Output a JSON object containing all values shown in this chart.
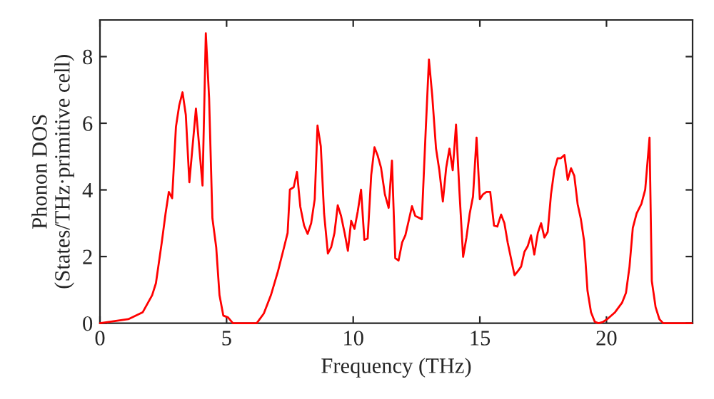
{
  "chart_data": {
    "type": "line",
    "xlabel": "Frequency (THz)",
    "ylabel": "Phonon DOS\n(States/THz·primitive cell)",
    "xlim": [
      0,
      23.4
    ],
    "ylim": [
      0,
      9.1
    ],
    "xticks": [
      0,
      5,
      10,
      15,
      20
    ],
    "yticks": [
      0,
      2,
      4,
      6,
      8
    ],
    "grid": false,
    "legend": false,
    "marker": "none",
    "line_style": "solid",
    "series": [
      {
        "color": "#ff0000",
        "x": [
          0,
          1.12,
          1.69,
          2.06,
          2.21,
          2.44,
          2.59,
          2.72,
          2.85,
          3.0,
          3.13,
          3.26,
          3.39,
          3.53,
          3.79,
          4.05,
          4.18,
          4.31,
          4.44,
          4.59,
          4.72,
          4.87,
          5.06,
          5.25,
          6.19,
          6.47,
          6.75,
          7.03,
          7.27,
          7.41,
          7.5,
          7.65,
          7.78,
          7.91,
          8.06,
          8.2,
          8.34,
          8.48,
          8.59,
          8.72,
          8.85,
          9.0,
          9.13,
          9.26,
          9.39,
          9.52,
          9.66,
          9.79,
          9.92,
          10.05,
          10.18,
          10.31,
          10.44,
          10.57,
          10.71,
          10.84,
          10.97,
          11.1,
          11.25,
          11.4,
          11.53,
          11.66,
          11.79,
          11.93,
          12.06,
          12.19,
          12.32,
          12.45,
          12.71,
          12.86,
          12.99,
          13.12,
          13.27,
          13.4,
          13.54,
          13.67,
          13.8,
          13.93,
          14.06,
          14.19,
          14.34,
          14.47,
          14.6,
          14.73,
          14.87,
          15.0,
          15.13,
          15.26,
          15.41,
          15.56,
          15.69,
          15.84,
          15.97,
          16.1,
          16.24,
          16.37,
          16.5,
          16.63,
          16.76,
          16.89,
          17.02,
          17.15,
          17.29,
          17.42,
          17.55,
          17.68,
          17.81,
          17.94,
          18.07,
          18.2,
          18.34,
          18.47,
          18.6,
          18.73,
          18.86,
          18.99,
          19.12,
          19.25,
          19.39,
          19.54,
          19.69,
          19.87,
          20.06,
          20.34,
          20.62,
          20.77,
          20.91,
          21.04,
          21.19,
          21.38,
          21.53,
          21.7,
          21.79,
          21.94,
          22.09,
          22.24,
          23.37
        ],
        "values": [
          0,
          0.12,
          0.33,
          0.84,
          1.2,
          2.42,
          3.29,
          3.94,
          3.75,
          5.89,
          6.54,
          6.93,
          6.25,
          4.23,
          6.44,
          4.13,
          8.7,
          6.75,
          3.15,
          2.28,
          0.84,
          0.23,
          0.17,
          0,
          0,
          0.29,
          0.84,
          1.56,
          2.28,
          2.71,
          4.01,
          4.08,
          4.54,
          3.5,
          2.93,
          2.68,
          3.0,
          3.72,
          5.93,
          5.31,
          3.29,
          2.09,
          2.28,
          2.71,
          3.54,
          3.22,
          2.71,
          2.17,
          3.07,
          2.83,
          3.36,
          4.01,
          2.5,
          2.54,
          4.44,
          5.28,
          5.02,
          4.66,
          3.87,
          3.46,
          4.88,
          1.95,
          1.88,
          2.42,
          2.64,
          3.07,
          3.51,
          3.22,
          3.12,
          5.74,
          7.91,
          6.83,
          5.24,
          4.59,
          3.65,
          4.66,
          5.24,
          4.59,
          5.96,
          4.01,
          1.99,
          2.57,
          3.29,
          3.8,
          5.57,
          3.72,
          3.87,
          3.94,
          3.94,
          2.93,
          2.9,
          3.26,
          3.0,
          2.42,
          1.91,
          1.44,
          1.56,
          1.7,
          2.14,
          2.31,
          2.64,
          2.06,
          2.71,
          3.0,
          2.57,
          2.74,
          3.87,
          4.59,
          4.95,
          4.95,
          5.05,
          4.3,
          4.65,
          4.42,
          3.58,
          3.12,
          2.45,
          0.98,
          0.33,
          0.04,
          0,
          0.04,
          0.14,
          0.33,
          0.62,
          0.91,
          1.7,
          2.86,
          3.29,
          3.58,
          4.01,
          5.57,
          1.27,
          0.48,
          0.12,
          0,
          0
        ]
      }
    ]
  }
}
